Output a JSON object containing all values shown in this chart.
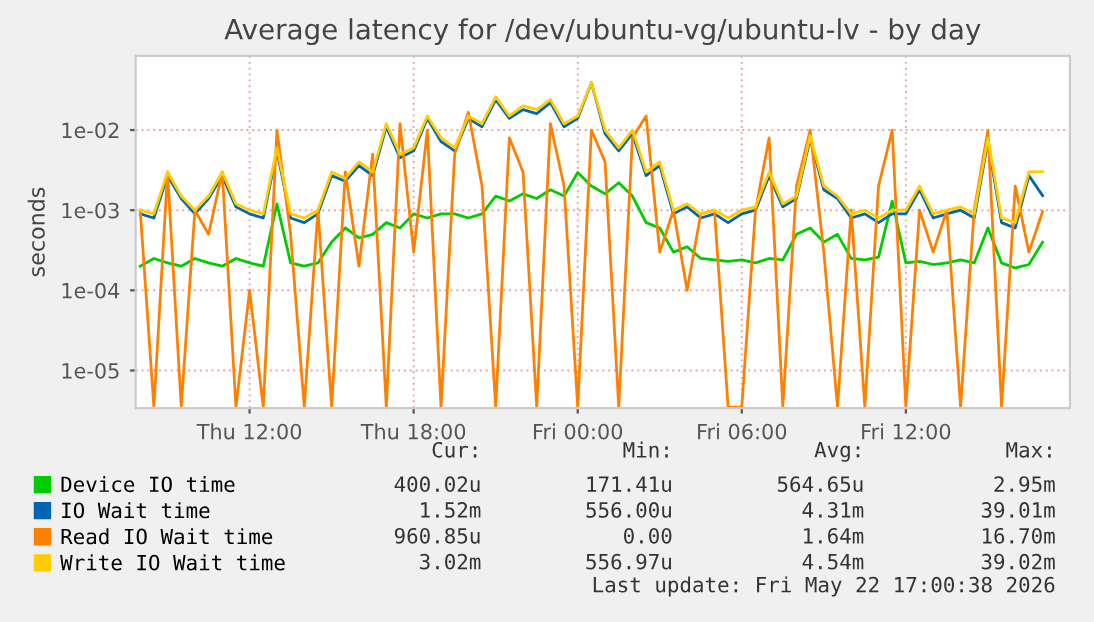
{
  "chart_data": {
    "type": "line",
    "title": "Average latency for /dev/ubuntu-vg/ubuntu-lv - by day",
    "ylabel": "seconds",
    "x": [
      "2026-05-21T08:00",
      "2026-05-21T08:30",
      "2026-05-21T09:00",
      "2026-05-21T09:30",
      "2026-05-21T10:00",
      "2026-05-21T10:30",
      "2026-05-21T11:00",
      "2026-05-21T11:30",
      "2026-05-21T12:00",
      "2026-05-21T12:30",
      "2026-05-21T13:00",
      "2026-05-21T13:30",
      "2026-05-21T14:00",
      "2026-05-21T14:30",
      "2026-05-21T15:00",
      "2026-05-21T15:30",
      "2026-05-21T16:00",
      "2026-05-21T16:30",
      "2026-05-21T17:00",
      "2026-05-21T17:30",
      "2026-05-21T18:00",
      "2026-05-21T18:30",
      "2026-05-21T19:00",
      "2026-05-21T19:30",
      "2026-05-21T20:00",
      "2026-05-21T20:30",
      "2026-05-21T21:00",
      "2026-05-21T21:30",
      "2026-05-21T22:00",
      "2026-05-21T22:30",
      "2026-05-21T23:00",
      "2026-05-21T23:30",
      "2026-05-22T00:00",
      "2026-05-22T00:30",
      "2026-05-22T01:00",
      "2026-05-22T01:30",
      "2026-05-22T02:00",
      "2026-05-22T02:30",
      "2026-05-22T03:00",
      "2026-05-22T03:30",
      "2026-05-22T04:00",
      "2026-05-22T04:30",
      "2026-05-22T05:00",
      "2026-05-22T05:30",
      "2026-05-22T06:00",
      "2026-05-22T06:30",
      "2026-05-22T07:00",
      "2026-05-22T07:30",
      "2026-05-22T08:00",
      "2026-05-22T08:30",
      "2026-05-22T09:00",
      "2026-05-22T09:30",
      "2026-05-22T10:00",
      "2026-05-22T10:30",
      "2026-05-22T11:00",
      "2026-05-22T11:30",
      "2026-05-22T12:00",
      "2026-05-22T12:30",
      "2026-05-22T13:00",
      "2026-05-22T13:30",
      "2026-05-22T14:00",
      "2026-05-22T14:30",
      "2026-05-22T15:00",
      "2026-05-22T15:30",
      "2026-05-22T16:00",
      "2026-05-22T16:30",
      "2026-05-22T17:00"
    ],
    "series": [
      {
        "name": "Device IO time",
        "color": "#00cc00",
        "values": [
          0.0002,
          0.00025,
          0.00022,
          0.0002,
          0.00025,
          0.00022,
          0.0002,
          0.00025,
          0.00022,
          0.0002,
          0.0012,
          0.00022,
          0.0002,
          0.00022,
          0.0004,
          0.0006,
          0.00045,
          0.0005,
          0.0007,
          0.0006,
          0.0009,
          0.0008,
          0.0009,
          0.0009,
          0.0008,
          0.0009,
          0.0015,
          0.0013,
          0.0016,
          0.0014,
          0.0018,
          0.0015,
          0.00295,
          0.002,
          0.0016,
          0.0022,
          0.0015,
          0.0007,
          0.0006,
          0.0003,
          0.00035,
          0.00025,
          0.00024,
          0.00023,
          0.00024,
          0.00022,
          0.00025,
          0.00024,
          0.0005,
          0.0006,
          0.0004,
          0.0005,
          0.00025,
          0.00024,
          0.00026,
          0.0013,
          0.00022,
          0.00023,
          0.00021,
          0.00022,
          0.00024,
          0.00022,
          0.0006,
          0.00022,
          0.00019,
          0.00021,
          0.0004
        ]
      },
      {
        "name": "IO Wait time",
        "color": "#0066b3",
        "values": [
          0.0009,
          0.0008,
          0.0027,
          0.0014,
          0.0009,
          0.0014,
          0.0027,
          0.0011,
          0.0009,
          0.0008,
          0.0055,
          0.0008,
          0.0007,
          0.0009,
          0.0027,
          0.0023,
          0.0036,
          0.0027,
          0.011,
          0.0045,
          0.0055,
          0.014,
          0.0072,
          0.0055,
          0.014,
          0.011,
          0.024,
          0.014,
          0.018,
          0.016,
          0.022,
          0.011,
          0.014,
          0.039,
          0.009,
          0.0055,
          0.009,
          0.0027,
          0.0036,
          0.0009,
          0.0011,
          0.0008,
          0.0009,
          0.0007,
          0.0009,
          0.001,
          0.0027,
          0.0011,
          0.0014,
          0.0078,
          0.0018,
          0.0014,
          0.0008,
          0.0009,
          0.0007,
          0.0009,
          0.0009,
          0.0018,
          0.0008,
          0.0009,
          0.001,
          0.0008,
          0.0072,
          0.0007,
          0.0006,
          0.0027,
          0.00152
        ]
      },
      {
        "name": "Read IO Wait time",
        "color": "#ff8000",
        "values": [
          0.001,
          3.5e-06,
          0.003,
          3.5e-06,
          0.001,
          0.0005,
          0.003,
          3.5e-06,
          0.0001,
          3.5e-06,
          0.01,
          0.0005,
          3.5e-06,
          0.001,
          3.5e-06,
          0.003,
          0.0002,
          0.005,
          3.5e-06,
          0.012,
          0.0003,
          0.01,
          3.5e-06,
          0.005,
          0.0167,
          0.002,
          3.5e-06,
          0.008,
          0.003,
          3.5e-06,
          0.012,
          0.002,
          3.5e-06,
          0.01,
          0.004,
          3.5e-06,
          0.008,
          0.015,
          0.0003,
          0.001,
          0.0001,
          0.0009,
          0.001,
          3.5e-06,
          3.5e-06,
          0.001,
          0.008,
          3.5e-06,
          0.002,
          0.01,
          0.0003,
          3.5e-06,
          0.001,
          3.5e-06,
          0.002,
          0.01,
          3.5e-06,
          0.001,
          0.0003,
          0.001,
          3.5e-06,
          0.001,
          0.01,
          3.5e-06,
          0.002,
          0.0003,
          0.00096
        ]
      },
      {
        "name": "Write IO Wait time",
        "color": "#ffcc00",
        "values": [
          0.001,
          0.0009,
          0.003,
          0.0015,
          0.001,
          0.0015,
          0.003,
          0.0012,
          0.001,
          0.0009,
          0.006,
          0.0009,
          0.0008,
          0.001,
          0.003,
          0.0025,
          0.004,
          0.003,
          0.012,
          0.005,
          0.006,
          0.015,
          0.008,
          0.006,
          0.015,
          0.012,
          0.026,
          0.015,
          0.02,
          0.018,
          0.024,
          0.012,
          0.015,
          0.039,
          0.01,
          0.006,
          0.01,
          0.003,
          0.004,
          0.001,
          0.0012,
          0.0009,
          0.001,
          0.0008,
          0.001,
          0.0011,
          0.003,
          0.0012,
          0.0015,
          0.0085,
          0.002,
          0.0015,
          0.0009,
          0.001,
          0.0008,
          0.001,
          0.001,
          0.002,
          0.0009,
          0.001,
          0.0011,
          0.0009,
          0.008,
          0.0008,
          0.0007,
          0.003,
          0.00302
        ]
      }
    ],
    "log": "y",
    "ylim": [
      3.4e-06,
      0.084
    ],
    "yticks": [
      {
        "value": 1e-05,
        "label": "1e-05"
      },
      {
        "value": 0.0001,
        "label": "1e-04"
      },
      {
        "value": 0.001,
        "label": "1e-03"
      },
      {
        "value": 0.01,
        "label": "1e-02"
      }
    ],
    "xlim": [
      "2026-05-21T07:50",
      "2026-05-22T18:00"
    ],
    "xticks": [
      {
        "value": "2026-05-21T12:00",
        "label": "Thu 12:00"
      },
      {
        "value": "2026-05-21T18:00",
        "label": "Thu 18:00"
      },
      {
        "value": "2026-05-22T00:00",
        "label": "Fri 00:00"
      },
      {
        "value": "2026-05-22T06:00",
        "label": "Fri 06:00"
      },
      {
        "value": "2026-05-22T12:00",
        "label": "Fri 12:00"
      }
    ],
    "grid": true,
    "legend": "bottom",
    "annotations": [
      "Cur:",
      "Min:",
      "Avg:",
      "Max:",
      "400.02u",
      "171.41u",
      "564.65u",
      "2.95m",
      "1.52m",
      "556.00u",
      "4.31m",
      "39.01m",
      "960.85u",
      "0.00",
      "1.64m",
      "16.70m",
      "3.02m",
      "556.97u",
      "4.54m",
      "39.02m",
      "Last update: Fri May 22 17:00:38 2026"
    ]
  }
}
